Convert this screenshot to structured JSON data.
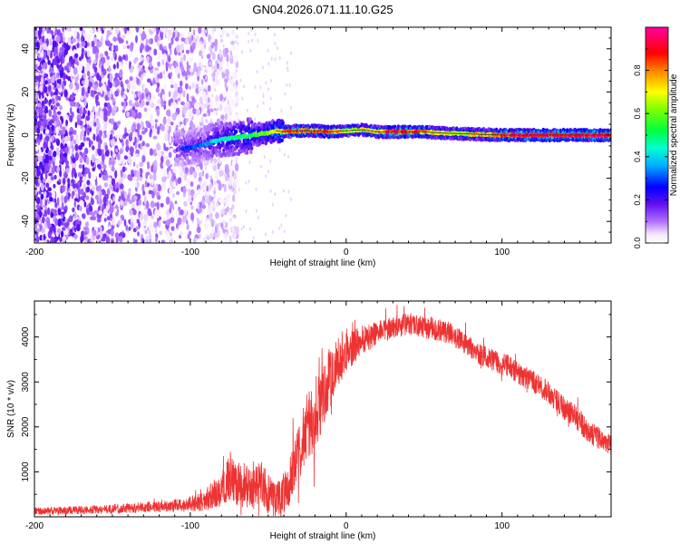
{
  "figure": {
    "title": "GN04.2026.071.11.10.G25"
  },
  "chart_data": [
    {
      "type": "heatmap",
      "title": "GN04.2026.071.11.10.G25",
      "xlabel": "Height of straight line (km)",
      "ylabel": "Frequency (Hz)",
      "xlim": [
        -200,
        170
      ],
      "ylim": [
        -50,
        50
      ],
      "x_ticks": [
        -200,
        -100,
        0,
        100
      ],
      "y_ticks": [
        -40,
        -20,
        0,
        20,
        40
      ],
      "colorbar": {
        "label": "Normalized spectral amplitude",
        "range": [
          0,
          1
        ],
        "ticks": [
          "0.0",
          "0.2",
          "0.4",
          "0.6",
          "0.8"
        ],
        "colors": [
          "#ffffff",
          "#e9d3ff",
          "#8a3cf0",
          "#4a00e0",
          "#0000ff",
          "#00c8ff",
          "#00ff60",
          "#ffff00",
          "#ff6a00",
          "#ff0000",
          "#ff0090"
        ]
      },
      "ridge": {
        "x": [
          -100,
          -90,
          -80,
          -70,
          -60,
          -50,
          -45,
          -40,
          -30,
          -20,
          -10,
          0,
          10,
          20,
          30,
          40,
          50,
          60,
          80,
          100,
          130,
          170
        ],
        "frequency": [
          -6,
          -4,
          -2,
          -1,
          0,
          1,
          2,
          1.5,
          2,
          2,
          1.5,
          2,
          2.5,
          1.5,
          1.5,
          1.5,
          1.5,
          1,
          0.5,
          0,
          0,
          0
        ],
        "amplitude": [
          0.3,
          0.35,
          0.45,
          0.5,
          0.55,
          0.6,
          0.75,
          0.8,
          0.85,
          0.8,
          0.85,
          0.65,
          0.7,
          0.75,
          0.9,
          0.9,
          0.8,
          0.7,
          0.7,
          0.9,
          0.95,
          0.95
        ]
      },
      "noise_region": {
        "x_from": -200,
        "x_to": -90,
        "amplitude_range": [
          0.0,
          0.15
        ]
      }
    },
    {
      "type": "line",
      "xlabel": "Height of straight line (km)",
      "ylabel": "SNR (10 * v/v)",
      "xlim": [
        -200,
        170
      ],
      "ylim": [
        0,
        4800
      ],
      "x_ticks": [
        -200,
        -100,
        0,
        100
      ],
      "y_ticks": [
        1000,
        2000,
        3000,
        4000
      ],
      "series": [
        {
          "name": "SNR",
          "color": "#ee3333",
          "x": [
            -200,
            -180,
            -160,
            -140,
            -120,
            -105,
            -95,
            -90,
            -85,
            -80,
            -75,
            -70,
            -65,
            -60,
            -55,
            -50,
            -45,
            -40,
            -35,
            -30,
            -25,
            -20,
            -15,
            -10,
            -5,
            0,
            5,
            10,
            15,
            20,
            25,
            30,
            35,
            40,
            45,
            50,
            55,
            60,
            65,
            70,
            75,
            80,
            85,
            90,
            95,
            100,
            105,
            110,
            115,
            120,
            125,
            130,
            135,
            140,
            145,
            150,
            155,
            160,
            165,
            170
          ],
          "values": [
            120,
            140,
            160,
            190,
            230,
            260,
            320,
            380,
            480,
            650,
            850,
            750,
            700,
            550,
            800,
            500,
            350,
            500,
            900,
            1400,
            2000,
            2300,
            2700,
            3100,
            3500,
            3700,
            3800,
            3950,
            4000,
            4100,
            4150,
            4200,
            4250,
            4300,
            4250,
            4200,
            4200,
            4150,
            4100,
            4000,
            3900,
            3750,
            3600,
            3550,
            3450,
            3400,
            3350,
            3200,
            3100,
            3000,
            2900,
            2750,
            2600,
            2400,
            2300,
            2100,
            1900,
            1800,
            1700,
            1600
          ],
          "noise_amplitude": [
            80,
            90,
            100,
            110,
            130,
            150,
            200,
            250,
            350,
            450,
            500,
            500,
            500,
            450,
            500,
            450,
            400,
            500,
            600,
            700,
            800,
            800,
            800,
            700,
            600,
            500,
            400,
            350,
            300,
            250,
            250,
            250,
            250,
            250,
            250,
            250,
            250,
            250,
            250,
            250,
            250,
            250,
            250,
            250,
            250,
            250,
            250,
            250,
            250,
            250,
            250,
            250,
            250,
            250,
            250,
            250,
            250,
            250,
            250,
            250
          ]
        }
      ]
    }
  ]
}
